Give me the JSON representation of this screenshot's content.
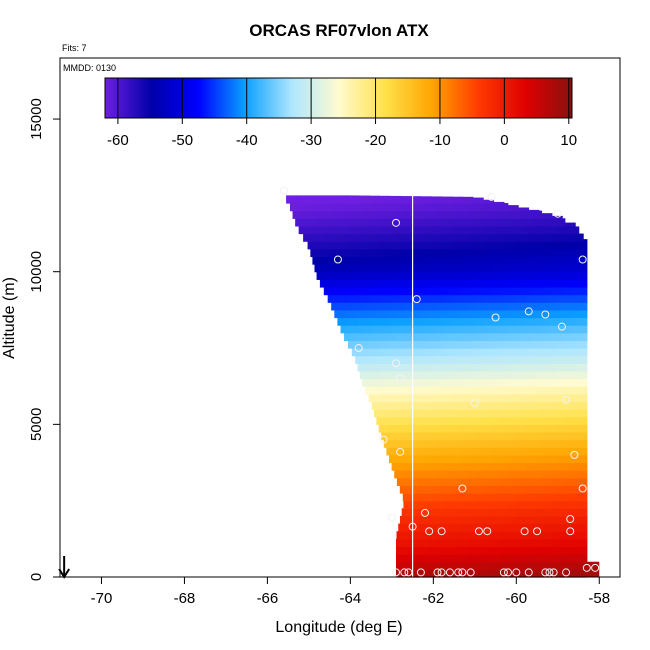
{
  "chart_data": {
    "type": "heatmap",
    "title": "ORCAS RF07vlon ATX",
    "note_fits": "Fits: 7",
    "note_date": "MMDD: 0130",
    "xlabel": "Longitude (deg E)",
    "ylabel": "Altitude (m)",
    "xlim": [
      -71,
      -57.5
    ],
    "ylim": [
      0,
      17000
    ],
    "x_ticks": [
      -70,
      -68,
      -66,
      -64,
      -62,
      -60,
      -58
    ],
    "x_tick_labels": [
      "-70",
      "-68",
      "-66",
      "-64",
      "-62",
      "-60",
      "-58"
    ],
    "y_ticks": [
      0,
      5000,
      10000,
      15000
    ],
    "y_tick_labels": [
      "0",
      "5000",
      "10000",
      "15000"
    ],
    "colorbar": {
      "min": -62,
      "max": 10.5,
      "ticks": [
        -60,
        -50,
        -40,
        -30,
        -20,
        -10,
        0,
        10
      ],
      "tick_labels": [
        "-60",
        "-50",
        "-40",
        "-30",
        "-20",
        "-10",
        "0",
        "10"
      ],
      "colors": [
        "#6e1fe0",
        "#0000a8",
        "#0000ff",
        "#0aa0ff",
        "#aee6ff",
        "#fffbd0",
        "#ffe14a",
        "#ffa500",
        "#ff3a00",
        "#e00000",
        "#8a1010"
      ]
    },
    "temperature_profile": {
      "altitudes_m": [
        0,
        1000,
        2000,
        3000,
        4000,
        5000,
        6000,
        7000,
        8000,
        9000,
        10000,
        11000,
        12000,
        13000
      ],
      "temps_c": [
        9,
        3,
        -1,
        -6,
        -11,
        -17,
        -23,
        -30,
        -36,
        -43,
        -51,
        -55,
        -59,
        -62
      ],
      "lateral_gradient_c": 2.5
    },
    "field_coverage": {
      "upper_boundary": [
        [
          -65.7,
          12700
        ],
        [
          -65.5,
          12500
        ],
        [
          -64,
          12500
        ],
        [
          -61,
          12450
        ],
        [
          -60.3,
          12250
        ],
        [
          -59.5,
          12000
        ],
        [
          -58.8,
          11750
        ],
        [
          -58.3,
          11000
        ],
        [
          -58.3,
          10400
        ]
      ],
      "left_boundary": [
        [
          -65.7,
          12600
        ],
        [
          -65.5,
          12300
        ],
        [
          -65.3,
          11500
        ],
        [
          -65,
          10800
        ],
        [
          -64.8,
          9800
        ],
        [
          -64.5,
          9000
        ],
        [
          -64.2,
          8000
        ],
        [
          -63.9,
          7200
        ],
        [
          -63.7,
          6300
        ],
        [
          -63.5,
          5700
        ],
        [
          -63.3,
          4800
        ],
        [
          -63.1,
          4000
        ],
        [
          -62.9,
          3200
        ],
        [
          -62.7,
          2500
        ],
        [
          -62.9,
          1300
        ],
        [
          -62.9,
          0
        ]
      ],
      "right_edge": -58.3,
      "surface_extension": [
        [
          -58.3,
          0
        ],
        [
          -58.3,
          500
        ],
        [
          -58,
          500
        ],
        [
          -58,
          0
        ]
      ]
    },
    "flight_track_longitude": -62.5,
    "observations": [
      [
        -65.6,
        12650
      ],
      [
        -60.6,
        12450
      ],
      [
        -62.9,
        11600
      ],
      [
        -59,
        11900
      ],
      [
        -64.3,
        10400
      ],
      [
        -58.4,
        10400
      ],
      [
        -62.4,
        9100
      ],
      [
        -59.7,
        8700
      ],
      [
        -60.5,
        8500
      ],
      [
        -59.3,
        8600
      ],
      [
        -58.9,
        8200
      ],
      [
        -63.8,
        7500
      ],
      [
        -62.9,
        7000
      ],
      [
        -62.8,
        6500
      ],
      [
        -61,
        5700
      ],
      [
        -58.8,
        5800
      ],
      [
        -63.2,
        4500
      ],
      [
        -62.8,
        4100
      ],
      [
        -58.6,
        4000
      ],
      [
        -58.4,
        2900
      ],
      [
        -61.3,
        2900
      ],
      [
        -62.2,
        2100
      ],
      [
        -63.0,
        1950
      ],
      [
        -58.7,
        1900
      ],
      [
        -62.5,
        1650
      ],
      [
        -62.1,
        1500
      ],
      [
        -61.8,
        1500
      ],
      [
        -60.9,
        1500
      ],
      [
        -60.7,
        1500
      ],
      [
        -59.8,
        1500
      ],
      [
        -59.5,
        1500
      ],
      [
        -58.7,
        1500
      ],
      [
        -62.9,
        150
      ],
      [
        -62.7,
        150
      ],
      [
        -62.6,
        150
      ],
      [
        -62.3,
        150
      ],
      [
        -61.9,
        150
      ],
      [
        -61.8,
        150
      ],
      [
        -61.6,
        150
      ],
      [
        -61.4,
        150
      ],
      [
        -61.3,
        150
      ],
      [
        -61.1,
        150
      ],
      [
        -60.3,
        150
      ],
      [
        -60.2,
        150
      ],
      [
        -60,
        150
      ],
      [
        -59.7,
        150
      ],
      [
        -59.3,
        150
      ],
      [
        -59.2,
        150
      ],
      [
        -59.1,
        150
      ],
      [
        -58.8,
        150
      ],
      [
        -58.3,
        300
      ],
      [
        -58.1,
        300
      ]
    ],
    "arrow_marker_longitude": -70.9
  }
}
